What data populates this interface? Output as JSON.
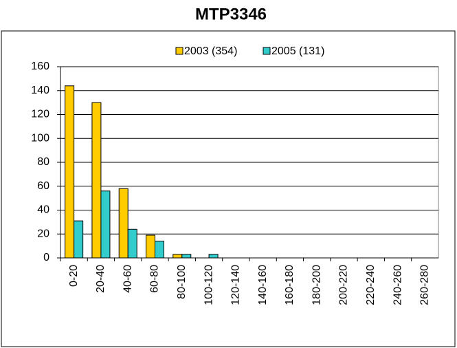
{
  "chart_data": {
    "type": "bar",
    "title": "MTP3346",
    "categories": [
      "0-20",
      "20-40",
      "40-60",
      "60-80",
      "80-100",
      "100-120",
      "120-140",
      "140-160",
      "160-180",
      "180-200",
      "200-220",
      "220-240",
      "240-260",
      "260-280"
    ],
    "series": [
      {
        "name": "2003 (354)",
        "color": "#ffcc00",
        "values": [
          144,
          130,
          58,
          19,
          3,
          0,
          0,
          0,
          0,
          0,
          0,
          0,
          0,
          0
        ]
      },
      {
        "name": "2005 (131)",
        "color": "#33cccc",
        "values": [
          31,
          56,
          24,
          14,
          3,
          3,
          0,
          0,
          0,
          0,
          0,
          0,
          0,
          0
        ]
      }
    ],
    "ylim": [
      0,
      160
    ],
    "yticks": [
      0,
      20,
      40,
      60,
      80,
      100,
      120,
      140,
      160
    ],
    "grid": true,
    "legend": "top"
  }
}
